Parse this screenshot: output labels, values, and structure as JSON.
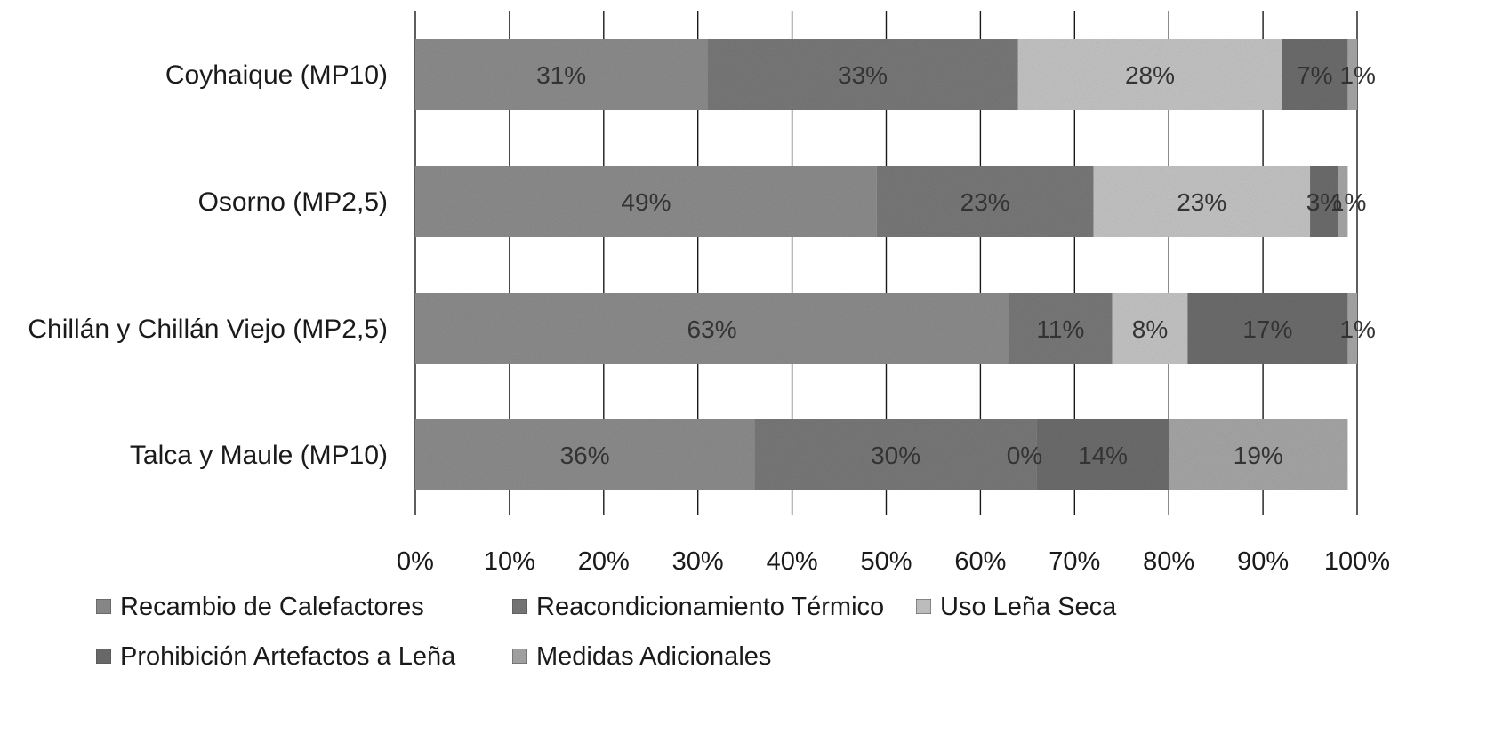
{
  "chart_data": {
    "type": "bar",
    "orientation": "horizontal",
    "stacked": "percent",
    "categories": [
      "Coyhaique (MP10)",
      "Osorno (MP2,5)",
      "Chillán y Chillán Viejo (MP2,5)",
      "Talca y Maule (MP10)"
    ],
    "series": [
      {
        "name": "Recambio de Calefactores",
        "values": [
          31,
          49,
          63,
          36
        ],
        "labels": [
          "31%",
          "49%",
          "63%",
          "36%"
        ],
        "color": "#8e8e8e"
      },
      {
        "name": "Reacondicionamiento Térmico",
        "values": [
          33,
          23,
          11,
          30
        ],
        "labels": [
          "33%",
          "23%",
          "11%",
          "30%"
        ],
        "color": "#7a7a7a"
      },
      {
        "name": "Uso Leña Seca",
        "values": [
          28,
          23,
          8,
          0
        ],
        "labels": [
          "28%",
          "23%",
          "8%",
          "0%"
        ],
        "color": "#c6c6c6"
      },
      {
        "name": "Prohibición Artefactos a Leña",
        "values": [
          7,
          3,
          17,
          14
        ],
        "labels": [
          "7%",
          "3%",
          "17%",
          "14%"
        ],
        "color": "#6e6e6e"
      },
      {
        "name": "Medidas Adicionales",
        "values": [
          1,
          1,
          1,
          19
        ],
        "labels": [
          "1%",
          "1%",
          "1%",
          "19%"
        ],
        "color": "#a8a8a8"
      }
    ],
    "xlim": [
      0,
      100
    ],
    "x_ticks": [
      "0%",
      "10%",
      "20%",
      "30%",
      "40%",
      "50%",
      "60%",
      "70%",
      "80%",
      "90%",
      "100%"
    ],
    "grid": "vertical",
    "legend": "bottom"
  }
}
